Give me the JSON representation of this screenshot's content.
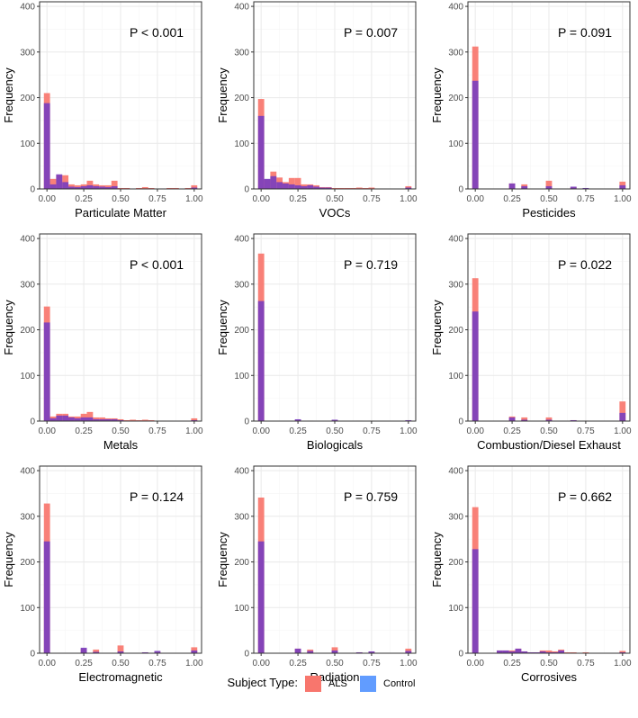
{
  "colors": {
    "als": "#F8766D",
    "control": "#619CFF",
    "overlap": "#7B3FBE",
    "grid_major": "#ebebeb",
    "grid_minor": "#f5f5f5",
    "panel_border": "#333333",
    "axis_text": "#4d4d4d",
    "label_text": "#000000"
  },
  "legend": {
    "title": "Subject Type:",
    "items": [
      {
        "label": "ALS",
        "color": "#F8766D"
      },
      {
        "label": "Control",
        "color": "#619CFF"
      }
    ]
  },
  "chart_data": [
    {
      "type": "bar",
      "title": "P < 0.001",
      "xlabel": "Particulate Matter",
      "ylabel": "Frequency",
      "xlim": [
        -0.05,
        1.05
      ],
      "ylim": [
        0,
        410
      ],
      "xticks": [
        0.0,
        0.25,
        0.5,
        0.75,
        1.0
      ],
      "xtick_labels": [
        "0.00",
        "0.25",
        "0.50",
        "0.75",
        "1.00"
      ],
      "yticks": [
        0,
        100,
        200,
        300,
        400
      ],
      "series": [
        {
          "name": "ALS",
          "x": [
            0.0,
            0.0417,
            0.0833,
            0.125,
            0.1667,
            0.2083,
            0.25,
            0.2917,
            0.3333,
            0.375,
            0.4167,
            0.4583,
            0.5,
            0.5417,
            0.5833,
            0.625,
            0.6667,
            0.7083,
            0.75,
            0.7917,
            0.8333,
            0.875,
            0.9167,
            0.9583,
            1.0
          ],
          "values": [
            210,
            22,
            30,
            30,
            10,
            8,
            10,
            18,
            10,
            8,
            8,
            18,
            2,
            2,
            1,
            2,
            4,
            2,
            1,
            1,
            2,
            2,
            0,
            2,
            8
          ]
        },
        {
          "name": "Control",
          "x": [
            0.0,
            0.0417,
            0.0833,
            0.125,
            0.1667,
            0.2083,
            0.25,
            0.2917,
            0.3333,
            0.375,
            0.4167,
            0.4583,
            0.5,
            0.5417,
            0.5833,
            0.625,
            0.6667,
            0.7083,
            0.75,
            0.7917,
            0.8333,
            0.875,
            0.9167,
            0.9583,
            1.0
          ],
          "values": [
            188,
            10,
            32,
            15,
            5,
            4,
            6,
            8,
            6,
            5,
            4,
            6,
            1,
            1,
            1,
            1,
            1,
            1,
            0,
            1,
            1,
            1,
            0,
            1,
            3
          ]
        }
      ]
    },
    {
      "type": "bar",
      "title": "P = 0.007",
      "xlabel": "VOCs",
      "ylabel": "Frequency",
      "xlim": [
        -0.05,
        1.05
      ],
      "ylim": [
        0,
        410
      ],
      "xticks": [
        0.0,
        0.25,
        0.5,
        0.75,
        1.0
      ],
      "xtick_labels": [
        "0.00",
        "0.25",
        "0.50",
        "0.75",
        "1.00"
      ],
      "yticks": [
        0,
        100,
        200,
        300,
        400
      ],
      "series": [
        {
          "name": "ALS",
          "x": [
            0.0,
            0.0417,
            0.0833,
            0.125,
            0.1667,
            0.2083,
            0.25,
            0.2917,
            0.3333,
            0.375,
            0.4167,
            0.4583,
            0.5,
            0.5417,
            0.5833,
            0.625,
            0.6667,
            0.7083,
            0.75,
            0.7917,
            0.8333,
            0.875,
            0.9167,
            0.9583,
            1.0
          ],
          "values": [
            197,
            20,
            38,
            25,
            15,
            24,
            24,
            10,
            10,
            8,
            4,
            4,
            2,
            2,
            2,
            2,
            3,
            2,
            3,
            1,
            1,
            0,
            0,
            0,
            6
          ]
        },
        {
          "name": "Control",
          "x": [
            0.0,
            0.0417,
            0.0833,
            0.125,
            0.1667,
            0.2083,
            0.25,
            0.2917,
            0.3333,
            0.375,
            0.4167,
            0.4583,
            0.5,
            0.5417,
            0.5833,
            0.625,
            0.6667,
            0.7083,
            0.75,
            0.7917,
            0.8333,
            0.875,
            0.9167,
            0.9583,
            1.0
          ],
          "values": [
            160,
            22,
            28,
            15,
            12,
            10,
            8,
            6,
            8,
            5,
            3,
            3,
            1,
            1,
            1,
            1,
            1,
            1,
            1,
            0,
            0,
            0,
            0,
            0,
            3
          ]
        }
      ]
    },
    {
      "type": "bar",
      "title": "P = 0.091",
      "xlabel": "Pesticides",
      "ylabel": "Frequency",
      "xlim": [
        -0.05,
        1.05
      ],
      "ylim": [
        0,
        410
      ],
      "xticks": [
        0.0,
        0.25,
        0.5,
        0.75,
        1.0
      ],
      "xtick_labels": [
        "0.00",
        "0.25",
        "0.50",
        "0.75",
        "1.00"
      ],
      "yticks": [
        0,
        100,
        200,
        300,
        400
      ],
      "series": [
        {
          "name": "ALS",
          "x": [
            0.0,
            0.25,
            0.3333,
            0.5,
            0.6667,
            0.75,
            1.0
          ],
          "values": [
            312,
            12,
            10,
            18,
            4,
            1,
            16
          ]
        },
        {
          "name": "Control",
          "x": [
            0.0,
            0.25,
            0.3333,
            0.5,
            0.6667,
            0.75,
            1.0
          ],
          "values": [
            237,
            12,
            6,
            6,
            5,
            2,
            8
          ]
        }
      ]
    },
    {
      "type": "bar",
      "title": "P < 0.001",
      "xlabel": "Metals",
      "ylabel": "Frequency",
      "xlim": [
        -0.05,
        1.05
      ],
      "ylim": [
        0,
        410
      ],
      "xticks": [
        0.0,
        0.25,
        0.5,
        0.75,
        1.0
      ],
      "xtick_labels": [
        "0.00",
        "0.25",
        "0.50",
        "0.75",
        "1.00"
      ],
      "yticks": [
        0,
        100,
        200,
        300,
        400
      ],
      "series": [
        {
          "name": "ALS",
          "x": [
            0.0,
            0.0417,
            0.0833,
            0.125,
            0.1667,
            0.2083,
            0.25,
            0.2917,
            0.3333,
            0.375,
            0.4167,
            0.4583,
            0.5,
            0.5417,
            0.5833,
            0.625,
            0.6667,
            0.7083,
            0.75,
            0.7917,
            0.8333,
            0.875,
            0.9167,
            0.9583,
            1.0
          ],
          "values": [
            251,
            10,
            16,
            16,
            10,
            10,
            16,
            20,
            8,
            8,
            6,
            6,
            4,
            2,
            3,
            2,
            3,
            2,
            1,
            1,
            1,
            0,
            1,
            1,
            6
          ]
        },
        {
          "name": "Control",
          "x": [
            0.0,
            0.0417,
            0.0833,
            0.125,
            0.1667,
            0.2083,
            0.25,
            0.2917,
            0.3333,
            0.375,
            0.4167,
            0.4583,
            0.5,
            0.5417,
            0.5833,
            0.625,
            0.6667,
            0.7083,
            0.75,
            0.7917,
            0.8333,
            0.875,
            0.9167,
            0.9583,
            1.0
          ],
          "values": [
            216,
            6,
            12,
            12,
            8,
            6,
            8,
            8,
            4,
            4,
            4,
            4,
            2,
            1,
            1,
            1,
            1,
            1,
            1,
            1,
            0,
            0,
            0,
            0,
            2
          ]
        }
      ]
    },
    {
      "type": "bar",
      "title": "P = 0.719",
      "xlabel": "Biologicals",
      "ylabel": "Frequency",
      "xlim": [
        -0.05,
        1.05
      ],
      "ylim": [
        0,
        410
      ],
      "xticks": [
        0.0,
        0.25,
        0.5,
        0.75,
        1.0
      ],
      "xtick_labels": [
        "0.00",
        "0.25",
        "0.50",
        "0.75",
        "1.00"
      ],
      "yticks": [
        0,
        100,
        200,
        300,
        400
      ],
      "series": [
        {
          "name": "ALS",
          "x": [
            0.0,
            0.25,
            0.3333,
            0.5,
            0.6667,
            0.75,
            1.0
          ],
          "values": [
            367,
            2,
            1,
            2,
            1,
            1,
            1
          ]
        },
        {
          "name": "Control",
          "x": [
            0.0,
            0.25,
            0.3333,
            0.5,
            0.6667,
            0.75,
            1.0
          ],
          "values": [
            263,
            4,
            1,
            3,
            1,
            1,
            2
          ]
        }
      ]
    },
    {
      "type": "bar",
      "title": "P = 0.022",
      "xlabel": "Combustion/Diesel Exhaust",
      "ylabel": "Frequency",
      "xlim": [
        -0.05,
        1.05
      ],
      "ylim": [
        0,
        410
      ],
      "xticks": [
        0.0,
        0.25,
        0.5,
        0.75,
        1.0
      ],
      "xtick_labels": [
        "0.00",
        "0.25",
        "0.50",
        "0.75",
        "1.00"
      ],
      "yticks": [
        0,
        100,
        200,
        300,
        400
      ],
      "series": [
        {
          "name": "ALS",
          "x": [
            0.0,
            0.25,
            0.3333,
            0.5,
            0.6667,
            0.75,
            1.0
          ],
          "values": [
            313,
            10,
            8,
            8,
            2,
            1,
            43
          ]
        },
        {
          "name": "Control",
          "x": [
            0.0,
            0.25,
            0.3333,
            0.5,
            0.6667,
            0.75,
            1.0
          ],
          "values": [
            240,
            8,
            3,
            3,
            2,
            1,
            18
          ]
        }
      ]
    },
    {
      "type": "bar",
      "title": "P = 0.124",
      "xlabel": "Electromagnetic",
      "ylabel": "Frequency",
      "xlim": [
        -0.05,
        1.05
      ],
      "ylim": [
        0,
        410
      ],
      "xticks": [
        0.0,
        0.25,
        0.5,
        0.75,
        1.0
      ],
      "xtick_labels": [
        "0.00",
        "0.25",
        "0.50",
        "0.75",
        "1.00"
      ],
      "yticks": [
        0,
        100,
        200,
        300,
        400
      ],
      "series": [
        {
          "name": "ALS",
          "x": [
            0.0,
            0.25,
            0.3333,
            0.5,
            0.6667,
            0.75,
            1.0
          ],
          "values": [
            328,
            10,
            8,
            17,
            2,
            3,
            13
          ]
        },
        {
          "name": "Control",
          "x": [
            0.0,
            0.25,
            0.3333,
            0.5,
            0.6667,
            0.75,
            1.0
          ],
          "values": [
            245,
            12,
            3,
            4,
            2,
            5,
            6
          ]
        }
      ]
    },
    {
      "type": "bar",
      "title": "P = 0.759",
      "xlabel": "Radiation",
      "ylabel": "Frequency",
      "xlim": [
        -0.05,
        1.05
      ],
      "ylim": [
        0,
        410
      ],
      "xticks": [
        0.0,
        0.25,
        0.5,
        0.75,
        1.0
      ],
      "xtick_labels": [
        "0.00",
        "0.25",
        "0.50",
        "0.75",
        "1.00"
      ],
      "yticks": [
        0,
        100,
        200,
        300,
        400
      ],
      "series": [
        {
          "name": "ALS",
          "x": [
            0.0,
            0.25,
            0.3333,
            0.5,
            0.6667,
            0.75,
            1.0
          ],
          "values": [
            341,
            10,
            8,
            13,
            2,
            3,
            10
          ]
        },
        {
          "name": "Control",
          "x": [
            0.0,
            0.25,
            0.3333,
            0.5,
            0.6667,
            0.75,
            1.0
          ],
          "values": [
            245,
            10,
            5,
            6,
            2,
            4,
            5
          ]
        }
      ]
    },
    {
      "type": "bar",
      "title": "P = 0.662",
      "xlabel": "Corrosives",
      "ylabel": "Frequency",
      "xlim": [
        -0.05,
        1.05
      ],
      "ylim": [
        0,
        410
      ],
      "xticks": [
        0.0,
        0.25,
        0.5,
        0.75,
        1.0
      ],
      "xtick_labels": [
        "0.00",
        "0.25",
        "0.50",
        "0.75",
        "1.00"
      ],
      "yticks": [
        0,
        100,
        200,
        300,
        400
      ],
      "series": [
        {
          "name": "ALS",
          "x": [
            0.0,
            0.0417,
            0.0833,
            0.125,
            0.1667,
            0.2083,
            0.25,
            0.2917,
            0.3333,
            0.375,
            0.4167,
            0.4583,
            0.5,
            0.5417,
            0.5833,
            0.625,
            0.6667,
            0.7083,
            0.75,
            0.7917,
            0.8333,
            0.875,
            0.9167,
            0.9583,
            1.0
          ],
          "values": [
            320,
            0,
            0,
            0,
            6,
            6,
            6,
            10,
            4,
            2,
            2,
            6,
            6,
            4,
            8,
            2,
            2,
            1,
            2,
            1,
            1,
            0,
            0,
            0,
            5
          ]
        },
        {
          "name": "Control",
          "x": [
            0.0,
            0.0417,
            0.0833,
            0.125,
            0.1667,
            0.2083,
            0.25,
            0.2917,
            0.3333,
            0.375,
            0.4167,
            0.4583,
            0.5,
            0.5417,
            0.5833,
            0.625,
            0.6667,
            0.7083,
            0.75,
            0.7917,
            0.8333,
            0.875,
            0.9167,
            0.9583,
            1.0
          ],
          "values": [
            228,
            0,
            0,
            0,
            6,
            6,
            4,
            10,
            4,
            2,
            2,
            4,
            2,
            2,
            6,
            1,
            1,
            1,
            1,
            0,
            0,
            0,
            0,
            0,
            2
          ]
        }
      ]
    }
  ]
}
